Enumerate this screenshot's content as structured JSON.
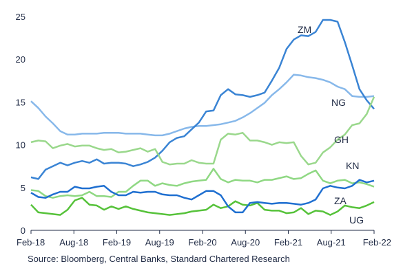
{
  "chart_data": {
    "type": "line",
    "x_ticks": [
      "Feb-18",
      "Aug-18",
      "Feb-19",
      "Aug-19",
      "Feb-20",
      "Aug-20",
      "Feb-21",
      "Aug-21",
      "Feb-22"
    ],
    "ylim": [
      0,
      25
    ],
    "y_ticks": [
      "0",
      "5",
      "10",
      "15",
      "20",
      "25"
    ],
    "grid": false,
    "source": "Source: Bloomberg, Central Banks, Standard Chartered Research",
    "series": [
      {
        "name": "ZM",
        "color": "#3a84d4",
        "values": [
          6.2,
          6.0,
          7.1,
          7.5,
          7.9,
          7.6,
          7.9,
          8.1,
          7.9,
          8.3,
          7.8,
          7.9,
          7.9,
          7.8,
          7.5,
          7.7,
          8.0,
          8.5,
          9.3,
          10.3,
          10.8,
          11.0,
          11.8,
          12.6,
          13.9,
          14.0,
          15.8,
          16.5,
          15.9,
          15.8,
          15.6,
          15.8,
          16.1,
          17.5,
          19.0,
          21.2,
          22.3,
          22.8,
          22.7,
          23.2,
          24.6,
          24.6,
          24.4,
          22.0,
          19.3,
          16.5,
          15.2,
          14.2
        ]
      },
      {
        "name": "NG",
        "color": "#87b8ea",
        "values": [
          15.1,
          14.3,
          13.3,
          12.5,
          11.6,
          11.2,
          11.2,
          11.3,
          11.3,
          11.3,
          11.4,
          11.4,
          11.4,
          11.3,
          11.3,
          11.3,
          11.2,
          11.1,
          11.1,
          11.3,
          11.6,
          11.9,
          12.1,
          12.2,
          12.2,
          12.3,
          12.4,
          12.6,
          12.8,
          13.2,
          13.7,
          14.3,
          14.9,
          15.8,
          16.5,
          17.3,
          18.2,
          18.1,
          17.9,
          17.8,
          17.6,
          17.3,
          16.8,
          16.5,
          15.7,
          15.6,
          15.6,
          15.7
        ]
      },
      {
        "name": "GH",
        "color": "#9ad88c",
        "values": [
          10.3,
          10.5,
          10.4,
          9.6,
          9.9,
          10.1,
          9.8,
          9.9,
          9.9,
          9.6,
          9.4,
          9.5,
          9.1,
          9.2,
          9.4,
          9.6,
          9.2,
          9.5,
          8.0,
          7.7,
          7.8,
          7.8,
          8.2,
          7.9,
          7.8,
          7.8,
          10.6,
          11.3,
          11.2,
          11.4,
          10.5,
          10.5,
          10.3,
          10.0,
          10.3,
          10.2,
          10.3,
          8.7,
          7.7,
          7.9,
          9.1,
          9.7,
          10.6,
          11.2,
          12.3,
          12.5,
          13.6,
          15.6
        ]
      },
      {
        "name": "KN",
        "color": "#8fd883",
        "values": [
          4.7,
          4.6,
          4.0,
          3.8,
          4.0,
          4.1,
          4.0,
          4.1,
          4.5,
          4.0,
          4.0,
          3.9,
          4.5,
          4.5,
          5.2,
          5.8,
          5.8,
          5.2,
          5.5,
          5.3,
          5.2,
          5.5,
          5.7,
          5.8,
          5.9,
          7.2,
          6.0,
          5.6,
          5.9,
          5.8,
          5.8,
          5.6,
          5.9,
          5.9,
          6.1,
          6.3,
          6.0,
          6.1,
          6.6,
          7.0,
          5.8,
          5.5,
          5.8,
          5.9,
          5.5,
          5.6,
          5.4,
          5.1
        ]
      },
      {
        "name": "ZA",
        "color": "#1f6fd0",
        "values": [
          4.4,
          3.9,
          3.8,
          4.2,
          4.5,
          4.5,
          5.1,
          4.9,
          4.9,
          5.1,
          5.2,
          4.5,
          4.1,
          4.1,
          4.5,
          4.4,
          4.5,
          4.5,
          4.2,
          4.1,
          4.1,
          3.8,
          3.6,
          4.1,
          4.6,
          4.6,
          4.1,
          2.8,
          2.1,
          2.1,
          3.2,
          3.3,
          3.2,
          3.1,
          3.2,
          3.2,
          3.1,
          3.0,
          3.2,
          3.6,
          4.9,
          5.2,
          5.0,
          4.9,
          5.2,
          5.9,
          5.6,
          5.8
        ]
      },
      {
        "name": "UG",
        "color": "#56c23a",
        "values": [
          3.0,
          2.1,
          2.0,
          1.9,
          1.8,
          2.4,
          3.5,
          3.8,
          3.0,
          2.9,
          2.4,
          2.8,
          2.5,
          2.8,
          2.5,
          2.3,
          2.1,
          2.0,
          1.9,
          1.8,
          1.9,
          2.0,
          2.2,
          2.3,
          2.4,
          3.0,
          2.6,
          2.8,
          3.4,
          3.0,
          2.9,
          3.2,
          2.4,
          2.3,
          2.3,
          2.0,
          2.1,
          2.6,
          1.9,
          2.3,
          2.2,
          1.8,
          2.2,
          2.9,
          2.7,
          2.6,
          2.9,
          3.3
        ]
      }
    ]
  }
}
